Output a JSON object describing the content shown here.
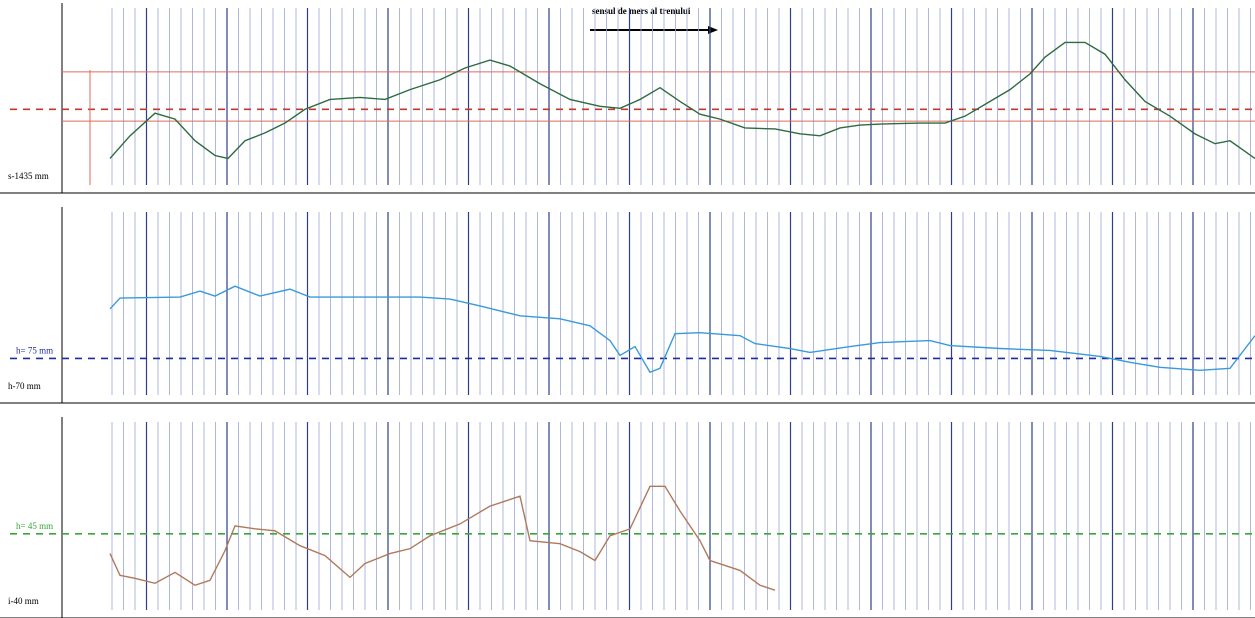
{
  "chart_data": [
    {
      "type": "line",
      "annotation": "sensul de mers al trenului",
      "side_label": "s-1435 mm",
      "xlim": [
        0,
        1145
      ],
      "ylim": [
        0,
        180
      ],
      "x": [
        0,
        20,
        45,
        65,
        85,
        105,
        118,
        135,
        155,
        175,
        195,
        220,
        250,
        275,
        300,
        330,
        355,
        380,
        400,
        430,
        460,
        490,
        510,
        530,
        550,
        570,
        590,
        610,
        635,
        665,
        690,
        710,
        730,
        750,
        770,
        810,
        835,
        855,
        875,
        900,
        920,
        935,
        955,
        975,
        995,
        1015,
        1035,
        1060,
        1085,
        1105,
        1120,
        1145
      ],
      "series": [
        {
          "color": "#2e6b3e",
          "values": [
            27,
            50,
            73,
            67,
            45,
            30,
            27,
            45,
            53,
            63,
            77,
            87,
            89,
            87,
            97,
            107,
            119,
            127,
            121,
            103,
            87,
            80,
            78,
            87,
            99,
            85,
            72,
            67,
            58,
            57,
            52,
            50,
            58,
            61,
            62,
            63,
            63,
            70,
            82,
            97,
            113,
            130,
            145,
            145,
            133,
            107,
            85,
            70,
            52,
            42,
            45,
            27
          ]
        }
      ],
      "ref_lines": [
        {
          "value": 115,
          "color": "#e06a5a",
          "dash": false
        },
        {
          "value": 77,
          "color": "#c0392b",
          "dash": true
        },
        {
          "value": 65,
          "color": "#e06a5a",
          "dash": false
        }
      ]
    },
    {
      "type": "line",
      "ref_label": "h= 75 mm",
      "side_label": "h-70 mm",
      "xlim": [
        0,
        1145
      ],
      "ylim": [
        0,
        185
      ],
      "x": [
        0,
        10,
        70,
        90,
        105,
        125,
        150,
        180,
        200,
        310,
        340,
        370,
        410,
        450,
        480,
        500,
        510,
        525,
        540,
        550,
        565,
        590,
        630,
        645,
        680,
        700,
        740,
        770,
        820,
        840,
        890,
        940,
        990,
        1020,
        1050,
        1090,
        1120,
        1145
      ],
      "series": [
        {
          "color": "#3a9ad9",
          "values": [
            87,
            98,
            99,
            105,
            100,
            110,
            100,
            107,
            99,
            99,
            97,
            90,
            80,
            77,
            70,
            55,
            40,
            49,
            23,
            27,
            62,
            63,
            60,
            52,
            47,
            43,
            49,
            53,
            55,
            50,
            47,
            45,
            39,
            33,
            28,
            25,
            27,
            60
          ]
        }
      ],
      "ref_lines": [
        {
          "value": 37,
          "color": "#1f2d9c",
          "dash": true
        }
      ]
    },
    {
      "type": "line",
      "ref_label": "h= 45 mm",
      "side_label": "i-40 mm",
      "xlim": [
        0,
        1145
      ],
      "ylim": [
        0,
        190
      ],
      "x": [
        0,
        10,
        25,
        45,
        65,
        85,
        100,
        115,
        125,
        145,
        165,
        190,
        215,
        240,
        255,
        280,
        300,
        320,
        350,
        380,
        410,
        420,
        450,
        470,
        485,
        500,
        520,
        540,
        555,
        570,
        590,
        600,
        630,
        650,
        665
      ],
      "series": [
        {
          "color": "#b07a5a",
          "values": [
            57,
            35,
            32,
            27,
            38,
            25,
            30,
            60,
            85,
            82,
            80,
            65,
            55,
            33,
            47,
            57,
            62,
            75,
            87,
            105,
            115,
            70,
            67,
            59,
            50,
            75,
            82,
            125,
            125,
            100,
            70,
            50,
            40,
            25,
            20
          ]
        }
      ],
      "ref_lines": [
        {
          "value": 77,
          "color": "#3aa63a",
          "dash": true
        }
      ]
    }
  ]
}
